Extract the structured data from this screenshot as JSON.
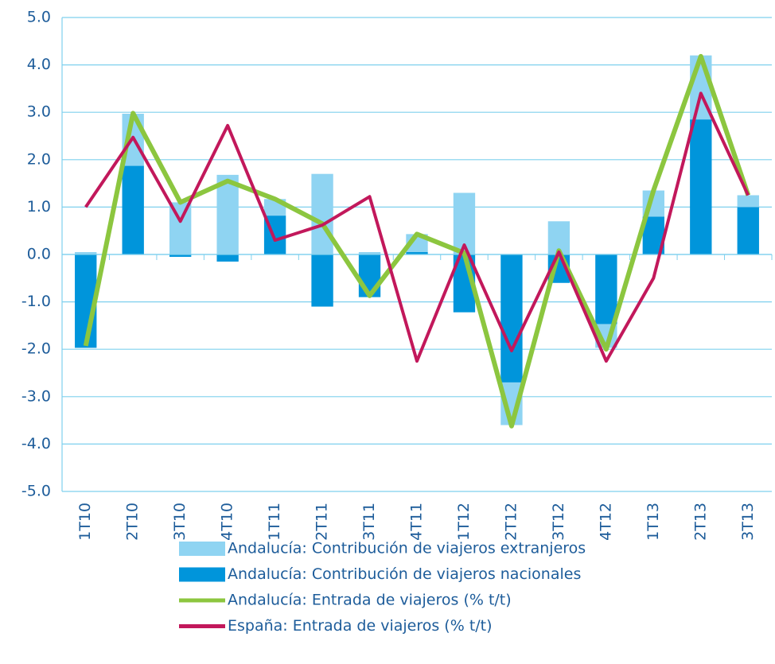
{
  "chart_data": {
    "type": "bar",
    "categories": [
      "1T10",
      "2T10",
      "3T10",
      "4T10",
      "1T11",
      "2T11",
      "3T11",
      "4T11",
      "1T12",
      "2T12",
      "3T12",
      "4T12",
      "1T13",
      "2T13",
      "3T13"
    ],
    "series": [
      {
        "name": "Andalucía: Contribución de viajeros extranjeros",
        "type": "bar",
        "color": "#8fd4f2",
        "values": [
          0.05,
          1.1,
          1.1,
          1.68,
          0.35,
          1.7,
          0.05,
          0.38,
          1.3,
          -0.9,
          0.7,
          -0.5,
          0.55,
          1.35,
          0.25
        ]
      },
      {
        "name": "Andalucía: Contribución de viajeros nacionales",
        "type": "bar",
        "color": "#0095db",
        "values": [
          -1.97,
          1.87,
          -0.05,
          -0.15,
          0.82,
          -1.1,
          -0.9,
          0.05,
          -1.22,
          -2.7,
          -0.6,
          -1.47,
          0.8,
          2.85,
          1.0
        ]
      },
      {
        "name": "Andalucía: Entrada de viajeros (% t/t)",
        "type": "line",
        "color": "#8cc63f",
        "values": [
          -1.93,
          2.98,
          1.1,
          1.55,
          1.17,
          0.65,
          -0.87,
          0.43,
          0.03,
          -3.62,
          0.08,
          -2.0,
          1.35,
          4.18,
          1.25
        ]
      },
      {
        "name": "España: Entrada de viajeros (% t/t)",
        "type": "line",
        "color": "#c2185b",
        "values": [
          1.0,
          2.47,
          0.7,
          2.72,
          0.3,
          0.62,
          1.22,
          -2.25,
          0.2,
          -2.03,
          0.05,
          -2.25,
          -0.5,
          3.4,
          1.25
        ]
      }
    ],
    "ylim": [
      -5,
      5
    ],
    "yticks": [
      {
        "value": -5,
        "label": "-5.0"
      },
      {
        "value": -4,
        "label": "-4.0"
      },
      {
        "value": -3,
        "label": "-3.0"
      },
      {
        "value": -2,
        "label": "-2.0"
      },
      {
        "value": -1,
        "label": "-1.0"
      },
      {
        "value": 0,
        "label": "0.0"
      },
      {
        "value": 1,
        "label": "1.0"
      },
      {
        "value": 2,
        "label": "2.0"
      },
      {
        "value": 3,
        "label": "3.0"
      },
      {
        "value": 4,
        "label": "4.0"
      },
      {
        "value": 5,
        "label": "5.0"
      }
    ],
    "grid": true
  }
}
